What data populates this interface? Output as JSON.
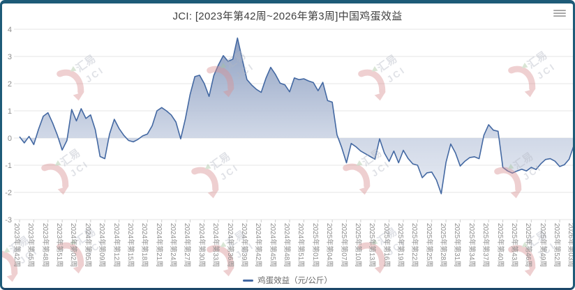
{
  "header": {
    "title": "JCI: [2023年第42周~2026年第3周]中国鸡蛋效益"
  },
  "legend": {
    "label": "鸡蛋效益（元/公斤）",
    "marker_color": "#4368a2"
  },
  "watermark": {
    "text_cn": "汇易",
    "text_en": "JCI",
    "swoosh_color": "#d98f91",
    "accent_green": "#a4c29c",
    "text_color": "#b4b8c4"
  },
  "colors": {
    "frame_border": "#1e5b78",
    "line": "#4368a2",
    "fill_top": "#8296bb",
    "fill_bottom": "#eef1f7",
    "gridline": "#e4e4e4",
    "axis_text": "#8d8d8d",
    "title_text": "#3f3f3f"
  },
  "chart_data": {
    "type": "area",
    "title": "JCI: [2023年第42周~2026年第3周]中国鸡蛋效益",
    "series": [
      {
        "name": "鸡蛋效益（元/公斤）",
        "unit": "元/公斤"
      }
    ],
    "ylim": [
      -3,
      4
    ],
    "y_ticks": [
      4,
      3,
      2,
      1,
      0,
      -1,
      -2,
      -3
    ],
    "grid": true,
    "legend_position": "bottom",
    "points_per_tick": 3,
    "x_tick_labels": [
      "2023年第42周",
      "2023年第45周",
      "2023年第48周",
      "2023年第51周",
      "2024年第02周",
      "2024年第05周",
      "2024年第09周",
      "2024年第12周",
      "2024年第15周",
      "2024年第18周",
      "2024年第21周",
      "2024年第24周",
      "2024年第27周",
      "2024年第30周",
      "2024年第33周",
      "2024年第36周",
      "2024年第39周",
      "2024年第42周",
      "2024年第45周",
      "2024年第48周",
      "2024年第51周",
      "2025年第01周",
      "2025年第04周",
      "2025年第07周",
      "2025年第10周",
      "2025年第13周",
      "2025年第16周",
      "2025年第19周",
      "2025年第22周",
      "2025年第25周",
      "2025年第28周",
      "2025年第31周",
      "2025年第34周",
      "2025年第37周",
      "2025年第40周",
      "2025年第43周",
      "2025年第46周",
      "2025年第49周",
      "2025年第52周",
      "2026年第03周"
    ],
    "values": [
      0.05,
      -0.18,
      0.06,
      -0.24,
      0.32,
      0.8,
      0.93,
      0.55,
      0.1,
      -0.44,
      -0.09,
      1.05,
      0.63,
      1.08,
      0.72,
      0.85,
      0.3,
      -0.68,
      -0.76,
      0.15,
      0.69,
      0.35,
      0.1,
      -0.09,
      -0.14,
      -0.05,
      0.08,
      0.15,
      0.45,
      1.0,
      1.12,
      1.0,
      0.85,
      0.59,
      -0.03,
      0.7,
      1.6,
      2.26,
      2.31,
      2.0,
      1.53,
      2.3,
      2.7,
      3.03,
      2.82,
      2.9,
      3.68,
      2.9,
      2.15,
      1.95,
      1.79,
      1.68,
      2.2,
      2.6,
      2.34,
      2.02,
      1.96,
      1.7,
      2.21,
      2.15,
      2.18,
      2.1,
      2.04,
      1.74,
      2.05,
      1.38,
      1.32,
      0.12,
      -0.35,
      -0.91,
      -0.2,
      -0.32,
      -0.48,
      -0.58,
      -0.68,
      -0.78,
      -0.03,
      -0.55,
      -0.86,
      -0.48,
      -0.91,
      -0.45,
      -0.75,
      -0.95,
      -1.0,
      -1.46,
      -1.28,
      -1.25,
      -1.55,
      -2.05,
      -0.9,
      -0.22,
      -0.55,
      -1.03,
      -0.85,
      -0.72,
      -0.69,
      -0.76,
      0.1,
      0.49,
      0.29,
      0.25,
      -1.08,
      -1.21,
      -1.29,
      -1.21,
      -1.15,
      -1.21,
      -1.08,
      -1.16,
      -0.95,
      -0.79,
      -0.76,
      -0.85,
      -1.05,
      -0.98,
      -0.78,
      -0.27
    ]
  }
}
